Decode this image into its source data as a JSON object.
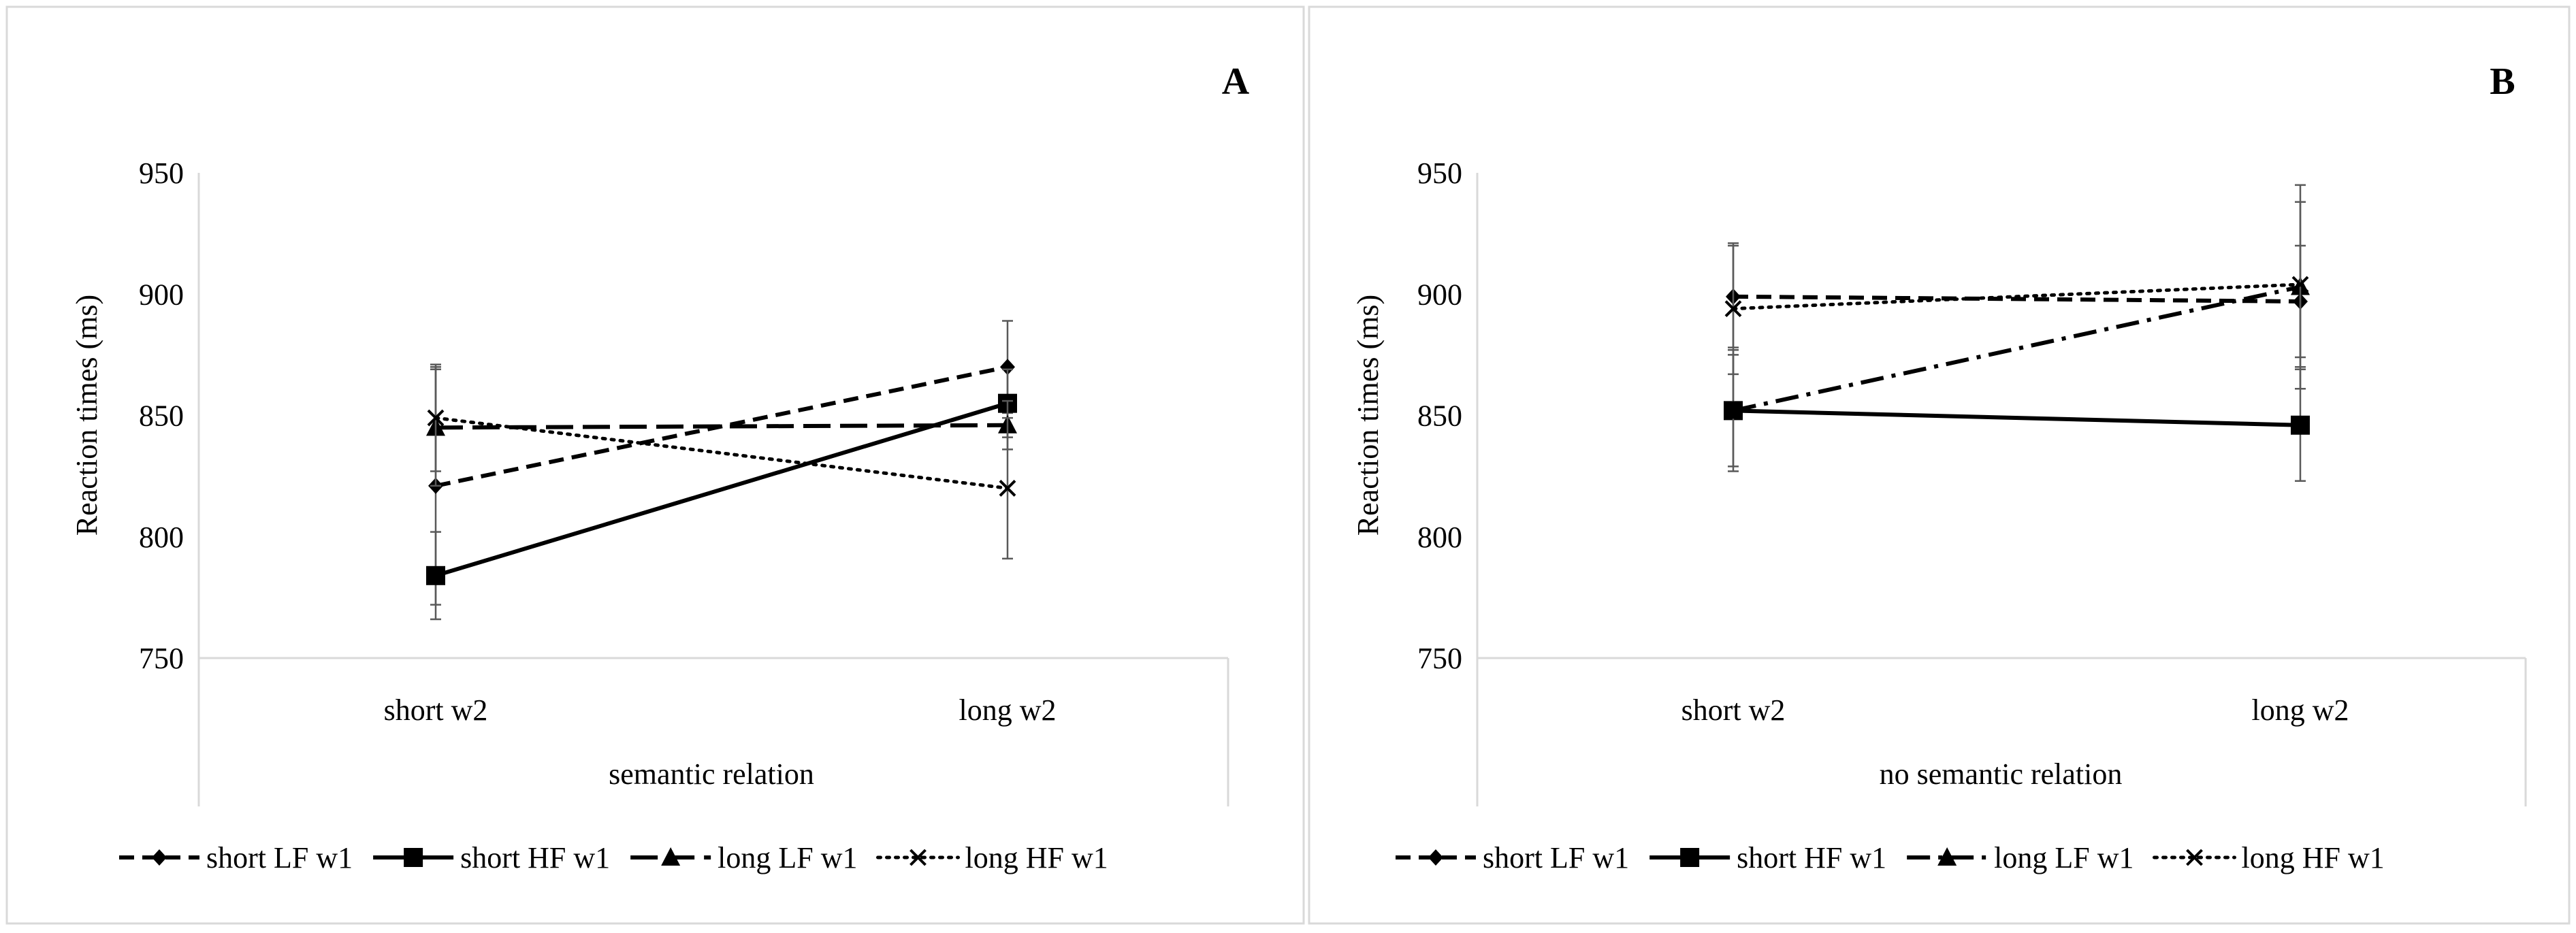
{
  "chart_data": [
    {
      "type": "line",
      "panel_label": "A",
      "ylabel": "Reaction times (ms)",
      "xlabel": "semantic relation",
      "categories": [
        "short w2",
        "long w2"
      ],
      "ylim": [
        750,
        950
      ],
      "yticks": [
        950,
        900,
        850,
        800,
        750
      ],
      "grid": false,
      "legend_position": "bottom",
      "series": [
        {
          "name": "short LF w1",
          "values": [
            821,
            870
          ],
          "errors": [
            49,
            19
          ],
          "line": "dashed",
          "marker": "diamond"
        },
        {
          "name": "short HF w1",
          "values": [
            784,
            855
          ],
          "errors": [
            18,
            14
          ],
          "line": "solid",
          "marker": "square"
        },
        {
          "name": "long LF w1",
          "values": [
            845,
            846
          ],
          "errors": [
            24,
            10
          ],
          "line": "longdash",
          "marker": "triangle"
        },
        {
          "name": "long HF w1",
          "values": [
            849,
            820
          ],
          "errors": [
            22,
            29
          ],
          "line": "dotted",
          "marker": "x"
        }
      ]
    },
    {
      "type": "line",
      "panel_label": "B",
      "ylabel": "Reaction times (ms)",
      "xlabel": "no semantic relation",
      "categories": [
        "short w2",
        "long w2"
      ],
      "ylim": [
        750,
        950
      ],
      "yticks": [
        950,
        900,
        850,
        800,
        750
      ],
      "grid": false,
      "legend_position": "bottom",
      "series": [
        {
          "name": "short LF w1",
          "values": [
            899,
            897
          ],
          "errors": [
            21,
            23
          ],
          "line": "dashed",
          "marker": "diamond"
        },
        {
          "name": "short HF w1",
          "values": [
            852,
            846
          ],
          "errors": [
            23,
            23
          ],
          "line": "solid",
          "marker": "square"
        },
        {
          "name": "long LF w1",
          "values": [
            852,
            903
          ],
          "errors": [
            25,
            42
          ],
          "line": "dashdot",
          "marker": "triangle"
        },
        {
          "name": "long HF w1",
          "values": [
            894,
            904
          ],
          "errors": [
            27,
            34
          ],
          "line": "dotted",
          "marker": "x"
        }
      ]
    }
  ]
}
